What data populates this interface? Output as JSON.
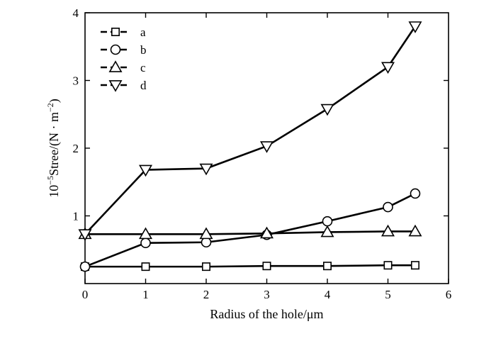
{
  "chart_data": {
    "type": "line",
    "xlabel": "Radius of the hole/μm",
    "ylabel_prefix": "10",
    "ylabel_exp": "−5",
    "ylabel_main": "Stree/(N · m",
    "ylabel_unit_exp": "−2",
    "ylabel_suffix": ")",
    "xlim": [
      0,
      6
    ],
    "ylim": [
      0,
      4
    ],
    "xticks": [
      0,
      1,
      2,
      3,
      4,
      5,
      6
    ],
    "yticks": [
      1,
      2,
      3,
      4
    ],
    "legend_position": "top-left",
    "grid": false,
    "x": [
      0,
      1,
      2,
      3,
      4,
      5,
      5.45
    ],
    "series": [
      {
        "name": "a",
        "marker": "square",
        "values": [
          0.25,
          0.25,
          0.25,
          0.26,
          0.26,
          0.27,
          0.27
        ]
      },
      {
        "name": "b",
        "marker": "circle",
        "values": [
          0.25,
          0.6,
          0.61,
          0.72,
          0.92,
          1.13,
          1.33
        ]
      },
      {
        "name": "c",
        "marker": "triangle-up",
        "values": [
          0.73,
          0.73,
          0.73,
          0.74,
          0.76,
          0.77,
          0.77
        ]
      },
      {
        "name": "d",
        "marker": "triangle-down",
        "values": [
          0.73,
          1.68,
          1.7,
          2.03,
          2.58,
          3.2,
          3.8
        ]
      }
    ]
  }
}
